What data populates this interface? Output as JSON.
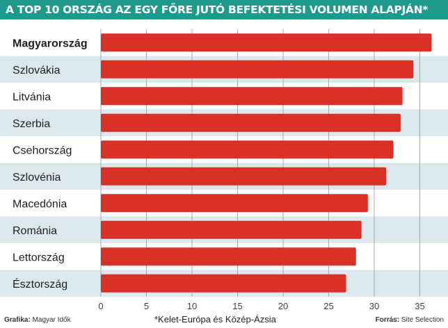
{
  "chart_data": {
    "type": "bar",
    "orientation": "horizontal",
    "title": "A TOP 10 ORSZÁG AZ EGY FŐRE JUTÓ BEFEKTETÉSI VOLUMEN ALAPJÁN*",
    "categories": [
      "Magyarország",
      "Szlovákia",
      "Litvánia",
      "Szerbia",
      "Csehország",
      "Szlovénia",
      "Macedónia",
      "Románia",
      "Lettország",
      "Észtország"
    ],
    "values": [
      36.3,
      34.3,
      33.1,
      32.9,
      32.1,
      31.3,
      29.3,
      28.6,
      28.0,
      26.9
    ],
    "highlight_category": "Magyarország",
    "xlim": [
      0,
      37
    ],
    "xticks": [
      0,
      5,
      10,
      15,
      20,
      25,
      30,
      35
    ],
    "grid": true,
    "bar_color": "#d93128",
    "stripe_color": "#dde8ed"
  },
  "footer": {
    "graphic_label": "Grafika:",
    "graphic_value": "Magyar Idők",
    "note": "*Kelet-Európa és Közép-Ázsia",
    "source_label": "Forrás:",
    "source_value": "Site Selection"
  }
}
